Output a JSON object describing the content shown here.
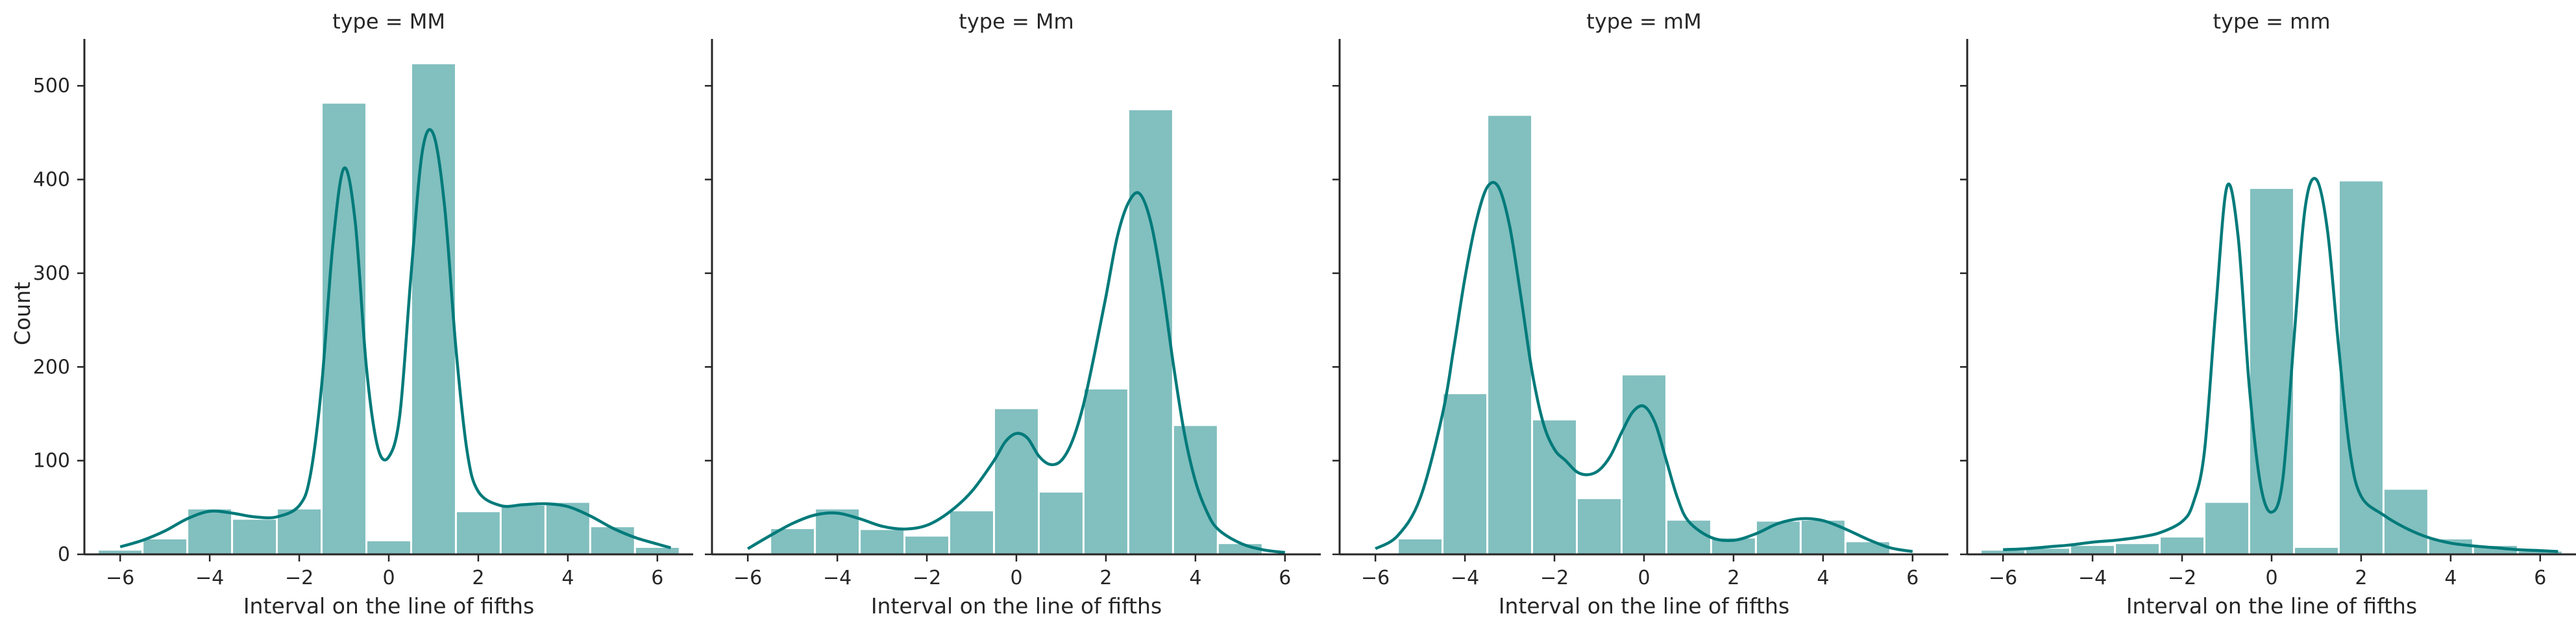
{
  "colors": {
    "bar_fill": "#82bfbf",
    "kde_line": "#007a7a",
    "axis": "#262626"
  },
  "chart_data": [
    {
      "type": "histogram",
      "title": "type = MM",
      "xlabel": "Interval on the line of fifths",
      "ylabel": "Count",
      "xlim": [
        -6.8,
        6.8
      ],
      "ylim": [
        0,
        550
      ],
      "xticks": [
        -6,
        -4,
        -2,
        0,
        2,
        4,
        6
      ],
      "yticks": [
        0,
        100,
        200,
        300,
        400,
        500
      ],
      "bin_width": 1,
      "bins": [
        {
          "x0": -6.5,
          "x1": -5.5,
          "count": 5
        },
        {
          "x0": -5.5,
          "x1": -4.5,
          "count": 17
        },
        {
          "x0": -4.5,
          "x1": -3.5,
          "count": 49
        },
        {
          "x0": -3.5,
          "x1": -2.5,
          "count": 38
        },
        {
          "x0": -2.5,
          "x1": -1.5,
          "count": 49
        },
        {
          "x0": -1.5,
          "x1": -0.5,
          "count": 482
        },
        {
          "x0": -0.5,
          "x1": 0.5,
          "count": 15
        },
        {
          "x0": 0.5,
          "x1": 1.5,
          "count": 524
        },
        {
          "x0": 1.5,
          "x1": 2.5,
          "count": 46
        },
        {
          "x0": 2.5,
          "x1": 3.5,
          "count": 53
        },
        {
          "x0": 3.5,
          "x1": 4.5,
          "count": 56
        },
        {
          "x0": 4.5,
          "x1": 5.5,
          "count": 30
        },
        {
          "x0": 5.5,
          "x1": 6.5,
          "count": 8
        }
      ],
      "kde": {
        "x": [
          -6.0,
          -5.5,
          -5.0,
          -4.5,
          -4.0,
          -3.5,
          -3.0,
          -2.5,
          -2.0,
          -1.75,
          -1.5,
          -1.25,
          -1.0,
          -0.75,
          -0.5,
          -0.25,
          0.0,
          0.25,
          0.5,
          0.75,
          1.0,
          1.25,
          1.5,
          1.75,
          2.0,
          2.5,
          3.0,
          3.5,
          4.0,
          4.5,
          5.0,
          5.5,
          6.0,
          6.3
        ],
        "y": [
          8,
          15,
          25,
          38,
          46,
          44,
          40,
          40,
          52,
          85,
          180,
          330,
          412,
          355,
          200,
          115,
          104,
          150,
          300,
          430,
          448,
          370,
          220,
          110,
          67,
          52,
          53,
          54,
          51,
          41,
          28,
          18,
          11,
          7
        ]
      }
    },
    {
      "type": "histogram",
      "title": "type = Mm",
      "xlabel": "Interval on the line of fifths",
      "ylabel": "",
      "xlim": [
        -6.8,
        6.8
      ],
      "ylim": [
        0,
        550
      ],
      "xticks": [
        -6,
        -4,
        -2,
        0,
        2,
        4,
        6
      ],
      "yticks": [
        0,
        100,
        200,
        300,
        400,
        500
      ],
      "bin_width": 1,
      "bins": [
        {
          "x0": -5.5,
          "x1": -4.5,
          "count": 28
        },
        {
          "x0": -4.5,
          "x1": -3.5,
          "count": 49
        },
        {
          "x0": -3.5,
          "x1": -2.5,
          "count": 27
        },
        {
          "x0": -2.5,
          "x1": -1.5,
          "count": 20
        },
        {
          "x0": -1.5,
          "x1": -0.5,
          "count": 47
        },
        {
          "x0": -0.5,
          "x1": 0.5,
          "count": 156
        },
        {
          "x0": 0.5,
          "x1": 1.5,
          "count": 67
        },
        {
          "x0": 1.5,
          "x1": 2.5,
          "count": 177
        },
        {
          "x0": 2.5,
          "x1": 3.5,
          "count": 475
        },
        {
          "x0": 3.5,
          "x1": 4.5,
          "count": 138
        },
        {
          "x0": 4.5,
          "x1": 5.5,
          "count": 12
        }
      ],
      "kde": {
        "x": [
          -6.0,
          -5.5,
          -5.0,
          -4.5,
          -4.0,
          -3.5,
          -3.0,
          -2.5,
          -2.0,
          -1.5,
          -1.0,
          -0.5,
          -0.25,
          0.0,
          0.25,
          0.5,
          0.75,
          1.0,
          1.25,
          1.5,
          1.75,
          2.0,
          2.25,
          2.5,
          2.75,
          3.0,
          3.25,
          3.5,
          3.75,
          4.0,
          4.25,
          4.5,
          5.0,
          5.5,
          6.0
        ],
        "y": [
          6,
          20,
          33,
          42,
          44,
          38,
          30,
          27,
          31,
          45,
          67,
          100,
          120,
          129,
          124,
          105,
          96,
          100,
          121,
          160,
          215,
          275,
          338,
          375,
          385,
          355,
          290,
          205,
          130,
          78,
          46,
          27,
          12,
          5,
          2
        ]
      }
    },
    {
      "type": "histogram",
      "title": "type = mM",
      "xlabel": "Interval on the line of fifths",
      "ylabel": "",
      "xlim": [
        -6.8,
        6.8
      ],
      "ylim": [
        0,
        550
      ],
      "xticks": [
        -6,
        -4,
        -2,
        0,
        2,
        4,
        6
      ],
      "yticks": [
        0,
        100,
        200,
        300,
        400,
        500
      ],
      "bin_width": 1,
      "bins": [
        {
          "x0": -5.5,
          "x1": -4.5,
          "count": 17
        },
        {
          "x0": -4.5,
          "x1": -3.5,
          "count": 172
        },
        {
          "x0": -3.5,
          "x1": -2.5,
          "count": 469
        },
        {
          "x0": -2.5,
          "x1": -1.5,
          "count": 144
        },
        {
          "x0": -1.5,
          "x1": -0.5,
          "count": 60
        },
        {
          "x0": -0.5,
          "x1": 0.5,
          "count": 192
        },
        {
          "x0": 0.5,
          "x1": 1.5,
          "count": 37
        },
        {
          "x0": 1.5,
          "x1": 2.5,
          "count": 18
        },
        {
          "x0": 2.5,
          "x1": 3.5,
          "count": 36
        },
        {
          "x0": 3.5,
          "x1": 4.5,
          "count": 37
        },
        {
          "x0": 4.5,
          "x1": 5.5,
          "count": 14
        }
      ],
      "kde": {
        "x": [
          -6.0,
          -5.5,
          -5.0,
          -4.5,
          -4.25,
          -4.0,
          -3.75,
          -3.5,
          -3.25,
          -3.0,
          -2.75,
          -2.5,
          -2.25,
          -2.0,
          -1.75,
          -1.5,
          -1.25,
          -1.0,
          -0.75,
          -0.5,
          -0.25,
          0.0,
          0.25,
          0.5,
          0.75,
          1.0,
          1.5,
          2.0,
          2.5,
          3.0,
          3.5,
          4.0,
          4.5,
          5.0,
          5.5,
          6.0
        ],
        "y": [
          6,
          20,
          60,
          150,
          220,
          295,
          355,
          392,
          392,
          350,
          275,
          195,
          140,
          112,
          100,
          88,
          85,
          90,
          105,
          130,
          152,
          158,
          140,
          100,
          60,
          35,
          18,
          15,
          22,
          33,
          38,
          36,
          27,
          16,
          7,
          3
        ]
      }
    },
    {
      "type": "histogram",
      "title": "type = mm",
      "xlabel": "Interval on the line of fifths",
      "ylabel": "",
      "xlim": [
        -6.8,
        6.8
      ],
      "ylim": [
        0,
        550
      ],
      "xticks": [
        -6,
        -4,
        -2,
        0,
        2,
        4,
        6
      ],
      "yticks": [
        0,
        100,
        200,
        300,
        400,
        500
      ],
      "bin_width": 1,
      "bins": [
        {
          "x0": -6.5,
          "x1": -5.5,
          "count": 5
        },
        {
          "x0": -5.5,
          "x1": -4.5,
          "count": 7
        },
        {
          "x0": -4.5,
          "x1": -3.5,
          "count": 10
        },
        {
          "x0": -3.5,
          "x1": -2.5,
          "count": 12
        },
        {
          "x0": -2.5,
          "x1": -1.5,
          "count": 19
        },
        {
          "x0": -1.5,
          "x1": -0.5,
          "count": 56
        },
        {
          "x0": -0.5,
          "x1": 0.5,
          "count": 391
        },
        {
          "x0": 0.5,
          "x1": 1.5,
          "count": 8
        },
        {
          "x0": 1.5,
          "x1": 2.5,
          "count": 399
        },
        {
          "x0": 2.5,
          "x1": 3.5,
          "count": 70
        },
        {
          "x0": 3.5,
          "x1": 4.5,
          "count": 17
        },
        {
          "x0": 4.5,
          "x1": 5.5,
          "count": 10
        },
        {
          "x0": 5.5,
          "x1": 6.5,
          "count": 4
        }
      ],
      "kde": {
        "x": [
          -6.0,
          -5.5,
          -5.0,
          -4.5,
          -4.0,
          -3.5,
          -3.0,
          -2.5,
          -2.0,
          -1.75,
          -1.5,
          -1.25,
          -1.0,
          -0.75,
          -0.5,
          -0.25,
          0.0,
          0.25,
          0.5,
          0.75,
          1.0,
          1.25,
          1.5,
          1.75,
          2.0,
          2.5,
          3.0,
          3.5,
          4.0,
          4.5,
          5.0,
          5.5,
          6.0,
          6.4
        ],
        "y": [
          5,
          6,
          8,
          10,
          13,
          15,
          18,
          23,
          35,
          55,
          110,
          260,
          392,
          340,
          180,
          75,
          45,
          80,
          230,
          370,
          400,
          345,
          220,
          110,
          62,
          42,
          28,
          18,
          12,
          9,
          7,
          5,
          4,
          3
        ]
      }
    }
  ]
}
